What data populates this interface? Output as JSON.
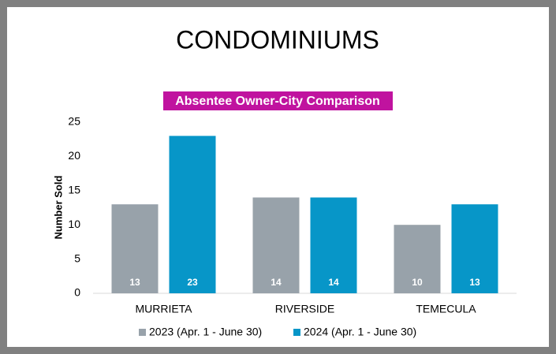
{
  "chart_data": {
    "type": "bar",
    "title": "CONDOMINIUMS",
    "subtitle": "Absentee Owner-City Comparison",
    "y_label": "Number Sold",
    "categories": [
      "MURRIETA",
      "RIVERSIDE",
      "TEMECULA"
    ],
    "series": [
      {
        "name": "2023 (Apr. 1 - June 30)",
        "color": "#98a2aa",
        "values": [
          13,
          14,
          10
        ]
      },
      {
        "name": "2024 (Apr. 1 - June 30)",
        "color": "#0796c8",
        "values": [
          23,
          14,
          13
        ]
      }
    ],
    "ylim": [
      0,
      25
    ],
    "yticks": [
      0,
      5,
      10,
      15,
      20,
      25
    ],
    "grid": false,
    "legend": "bottom"
  }
}
